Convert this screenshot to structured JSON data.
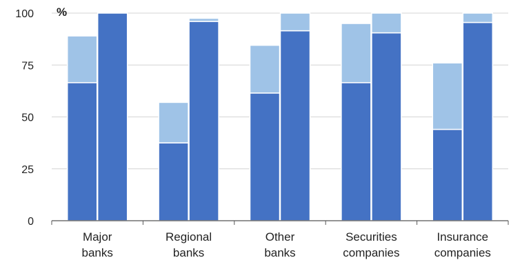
{
  "chart_data": {
    "type": "bar",
    "stacked": true,
    "unit_label": "%",
    "categories": [
      [
        "Major",
        "banks"
      ],
      [
        "Regional",
        "banks"
      ],
      [
        "Other",
        "banks"
      ],
      [
        "Securities",
        "companies"
      ],
      [
        "Insurance",
        "companies"
      ]
    ],
    "bars_per_category": 2,
    "series": [
      {
        "values": [
          [
            66.5,
            100
          ],
          [
            37.5,
            96
          ],
          [
            61.5,
            91.5
          ],
          [
            66.5,
            90.5
          ],
          [
            44,
            95.5
          ]
        ],
        "color": "#4472c4"
      },
      {
        "values": [
          [
            22.5,
            0
          ],
          [
            19.5,
            1.5
          ],
          [
            23,
            8.5
          ],
          [
            28.5,
            9.5
          ],
          [
            32,
            4.5
          ]
        ],
        "color": "#9fc3e7"
      }
    ],
    "yticks": [
      0,
      25,
      50,
      75,
      100
    ],
    "ylim": [
      0,
      100
    ],
    "grid": true,
    "legend": "none"
  }
}
